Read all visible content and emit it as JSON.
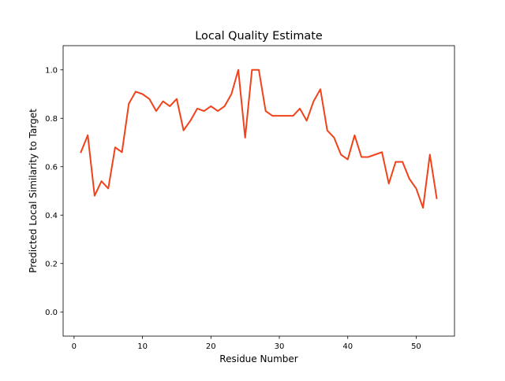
{
  "chart_data": {
    "type": "line",
    "title": "Local Quality Estimate",
    "xlabel": "Residue Number",
    "ylabel": "Predicted Local Similarity to Target",
    "xlim": [
      -1.6,
      55.6
    ],
    "ylim": [
      -0.1,
      1.1
    ],
    "xticks": [
      0,
      10,
      20,
      30,
      40,
      50
    ],
    "yticks": [
      0.0,
      0.2,
      0.4,
      0.6,
      0.8,
      1.0
    ],
    "xtick_labels": [
      "0",
      "10",
      "20",
      "30",
      "40",
      "50"
    ],
    "ytick_labels": [
      "0.0",
      "0.2",
      "0.4",
      "0.6",
      "0.8",
      "1.0"
    ],
    "grid": false,
    "legend": "none",
    "series": [
      {
        "color": "#f0421b",
        "x": [
          1,
          2,
          3,
          4,
          5,
          6,
          7,
          8,
          9,
          10,
          11,
          12,
          13,
          14,
          15,
          16,
          17,
          18,
          19,
          20,
          21,
          22,
          23,
          24,
          25,
          26,
          27,
          28,
          29,
          30,
          31,
          32,
          33,
          34,
          35,
          36,
          37,
          38,
          39,
          40,
          41,
          42,
          43,
          44,
          45,
          46,
          47,
          48,
          49,
          50,
          51,
          52,
          53
        ],
        "y": [
          0.66,
          0.73,
          0.48,
          0.54,
          0.51,
          0.68,
          0.66,
          0.86,
          0.91,
          0.9,
          0.88,
          0.83,
          0.87,
          0.85,
          0.88,
          0.75,
          0.79,
          0.84,
          0.83,
          0.85,
          0.83,
          0.85,
          0.9,
          1.0,
          0.72,
          1.0,
          1.0,
          0.83,
          0.81,
          0.81,
          0.81,
          0.81,
          0.84,
          0.79,
          0.87,
          0.92,
          0.75,
          0.72,
          0.65,
          0.63,
          0.73,
          0.64,
          0.64,
          0.65,
          0.66,
          0.53,
          0.62,
          0.62,
          0.55,
          0.51,
          0.43,
          0.65,
          0.47
        ]
      }
    ]
  }
}
